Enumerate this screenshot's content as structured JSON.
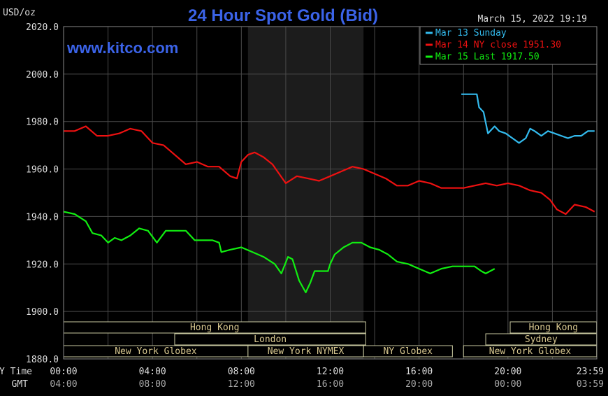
{
  "header": {
    "unit_label": "USD/oz",
    "title": "24 Hour Spot Gold (Bid)",
    "timestamp": "March 15, 2022 19:19",
    "watermark": "www.kitco.com"
  },
  "legend": [
    {
      "label": "Mar 13 Sunday",
      "color": "#33bbee"
    },
    {
      "label": "Mar 14 NY close 1951.30",
      "color": "#ee1111"
    },
    {
      "label": "Mar 15 Last 1917.50",
      "color": "#11ee11"
    }
  ],
  "time_rows": {
    "ny_label": "NY Time",
    "gmt_label": "GMT",
    "ny_ticks": [
      "00:00",
      "04:00",
      "08:00",
      "12:00",
      "16:00",
      "20:00",
      "23:59"
    ],
    "gmt_ticks": [
      "04:00",
      "08:00",
      "12:00",
      "16:00",
      "20:00",
      "00:00",
      "03:59"
    ]
  },
  "sessions": [
    {
      "label": "Hong Kong",
      "start": 0,
      "end": 13.6,
      "row": 0
    },
    {
      "label": "London",
      "start": 5,
      "end": 13.6,
      "row": 1
    },
    {
      "label": "New York Globex",
      "start": 0,
      "end": 8.3,
      "row": 2
    },
    {
      "label": "New York NYMEX",
      "start": 8.3,
      "end": 13.5,
      "row": 2
    },
    {
      "label": "NY Globex",
      "start": 13.5,
      "end": 17.5,
      "row": 2
    },
    {
      "label": "Hong Kong",
      "start": 20.1,
      "end": 23.99,
      "row": 0
    },
    {
      "label": "Sydney",
      "start": 19,
      "end": 23.99,
      "row": 1
    },
    {
      "label": "New York Globex",
      "start": 18,
      "end": 23.99,
      "row": 2
    }
  ],
  "chart_data": {
    "type": "line",
    "title": "24 Hour Spot Gold (Bid)",
    "ylabel": "USD/oz",
    "xlabel": "NY Time",
    "xlim": [
      0,
      24
    ],
    "ylim": [
      1880,
      2020
    ],
    "y_ticks": [
      "2020.0",
      "2000.0",
      "1980.0",
      "1960.0",
      "1940.0",
      "1920.0",
      "1900.0",
      "1880.0"
    ],
    "shaded_session": [
      8.3,
      13.5
    ],
    "grid": true,
    "series": [
      {
        "name": "Mar 13 Sunday",
        "color": "#33bbee",
        "x": [
          17.9,
          18.6,
          18.7,
          18.9,
          19.1,
          19.2,
          19.4,
          19.6,
          19.9,
          20.2,
          20.5,
          20.8,
          21.0,
          21.2,
          21.5,
          21.8,
          22.1,
          22.4,
          22.7,
          23.0,
          23.3,
          23.6,
          23.9
        ],
        "y": [
          1991.5,
          1991.5,
          1986,
          1984,
          1975,
          1976,
          1978,
          1976,
          1975,
          1973,
          1971,
          1973,
          1977,
          1976,
          1974,
          1976,
          1975,
          1974,
          1973,
          1974,
          1974,
          1976,
          1976
        ]
      },
      {
        "name": "Mar 14 NY close 1951.30",
        "color": "#ee1111",
        "x": [
          0,
          0.5,
          1.0,
          1.5,
          2.0,
          2.5,
          3.0,
          3.5,
          4.0,
          4.5,
          5.0,
          5.5,
          6.0,
          6.5,
          7.0,
          7.5,
          7.8,
          8.0,
          8.3,
          8.6,
          9.0,
          9.4,
          9.7,
          10.0,
          10.5,
          11.0,
          11.5,
          12.0,
          12.5,
          13.0,
          13.5,
          14.0,
          14.5,
          15.0,
          15.5,
          16.0,
          16.5,
          17.0,
          17.5,
          18.0,
          18.5,
          19.0,
          19.5,
          20.0,
          20.5,
          21.0,
          21.5,
          21.9,
          22.2,
          22.6,
          23.0,
          23.5,
          23.9
        ],
        "y": [
          1976,
          1976,
          1978,
          1974,
          1974,
          1975,
          1977,
          1976,
          1971,
          1970,
          1966,
          1962,
          1963,
          1961,
          1961,
          1957,
          1956,
          1963,
          1966,
          1967,
          1965,
          1962,
          1958,
          1954,
          1957,
          1956,
          1955,
          1957,
          1959,
          1961,
          1960,
          1958,
          1956,
          1953,
          1953,
          1955,
          1954,
          1952,
          1952,
          1952,
          1953,
          1954,
          1953,
          1954,
          1953,
          1951,
          1950,
          1947,
          1943,
          1941,
          1945,
          1944,
          1942
        ]
      },
      {
        "name": "Mar 15 Last 1917.50",
        "color": "#11ee11",
        "x": [
          0,
          0.5,
          1.0,
          1.3,
          1.7,
          2.0,
          2.3,
          2.6,
          3.0,
          3.4,
          3.8,
          4.2,
          4.6,
          5.0,
          5.5,
          5.9,
          6.3,
          6.7,
          7.0,
          7.1,
          7.5,
          8.0,
          8.5,
          9.0,
          9.5,
          9.8,
          10.1,
          10.3,
          10.6,
          10.9,
          11.1,
          11.3,
          11.6,
          11.9,
          12.0,
          12.2,
          12.6,
          13.0,
          13.4,
          13.8,
          14.2,
          14.6,
          15.0,
          15.5,
          16.0,
          16.5,
          17.0,
          17.5,
          18.0,
          18.3,
          18.5,
          18.8,
          19.0,
          19.4
        ],
        "y": [
          1942,
          1941,
          1938,
          1933,
          1932,
          1929,
          1931,
          1930,
          1932,
          1935,
          1934,
          1929,
          1934,
          1934,
          1934,
          1930,
          1930,
          1930,
          1929,
          1925,
          1926,
          1927,
          1925,
          1923,
          1920,
          1916,
          1923,
          1922,
          1913,
          1908,
          1912,
          1917,
          1917,
          1917,
          1920,
          1924,
          1927,
          1929,
          1929,
          1927,
          1926,
          1924,
          1921,
          1920,
          1918,
          1916,
          1918,
          1919,
          1919,
          1919,
          1919,
          1917,
          1916,
          1918
        ]
      }
    ]
  }
}
